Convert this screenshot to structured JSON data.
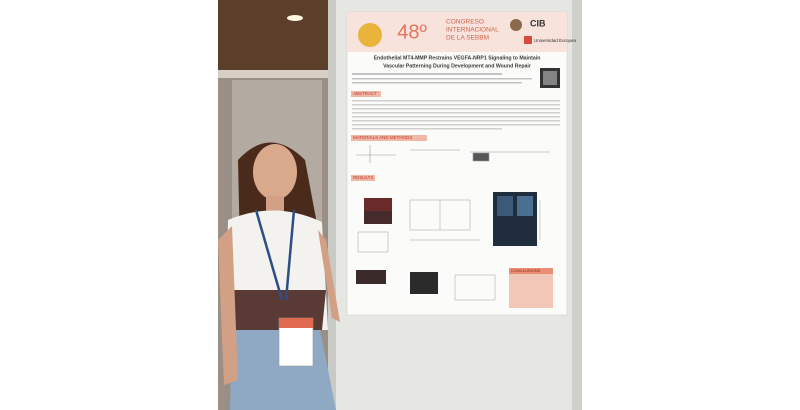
{
  "poster": {
    "congress_number": "48º",
    "congress_name": [
      "CONGRESO",
      "INTERNACIONAL",
      "DE LA SEBBM"
    ],
    "logos": [
      "CIB",
      "Universidad Europea"
    ],
    "title_lines": [
      "Endothelial MT4-MMP Restrains VEGFA-NRP1 Signaling to Maintain",
      "Vascular Patterning During Development and Wound Repair"
    ],
    "sections": [
      "ABSTRACT",
      "MATERIALS AND METHODS",
      "RESULTS",
      "CONCLUSIONS"
    ]
  }
}
